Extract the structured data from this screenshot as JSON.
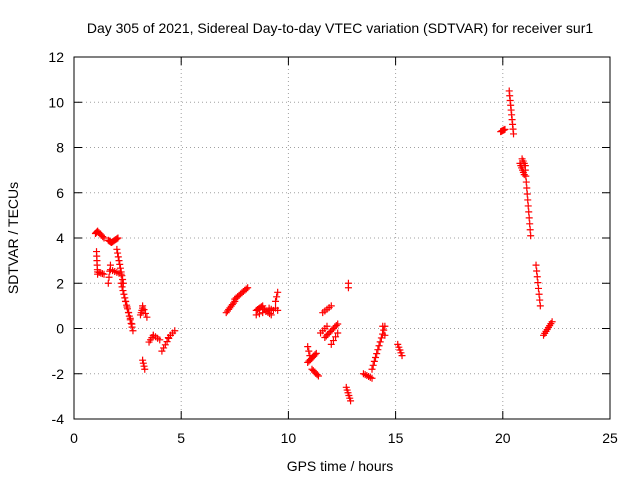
{
  "chart_data": {
    "type": "scatter",
    "title": "Day 305 of 2021, Sidereal Day-to-day VTEC variation (SDTVAR) for receiver sur1",
    "xlabel": "GPS time / hours",
    "ylabel": "SDTVAR / TECUs",
    "xlim": [
      0,
      25
    ],
    "ylim": [
      -4,
      12
    ],
    "xticks": [
      0,
      5,
      10,
      15,
      20,
      25
    ],
    "yticks": [
      -4,
      -2,
      0,
      2,
      4,
      6,
      8,
      10,
      12
    ],
    "xtick_labels": [
      "0",
      "5",
      "10",
      "15",
      "20",
      "25"
    ],
    "ytick_labels": [
      "-4",
      "-2",
      "0",
      "2",
      "4",
      "6",
      "8",
      "10",
      "12"
    ],
    "grid": true,
    "marker": "+",
    "marker_color": "#ff0000",
    "segments": [
      {
        "x0": 1.0,
        "x1": 1.1,
        "y0": 4.2,
        "y1": 4.3,
        "n": 4
      },
      {
        "x0": 1.1,
        "x1": 1.4,
        "y0": 4.3,
        "y1": 4.0,
        "n": 6
      },
      {
        "x0": 1.05,
        "x1": 1.1,
        "y0": 3.4,
        "y1": 2.4,
        "n": 6
      },
      {
        "x0": 1.1,
        "x1": 1.4,
        "y0": 2.5,
        "y1": 2.4,
        "n": 5
      },
      {
        "x0": 1.6,
        "x1": 1.75,
        "y0": 3.9,
        "y1": 3.8,
        "n": 5
      },
      {
        "x0": 1.75,
        "x1": 2.05,
        "y0": 3.8,
        "y1": 4.0,
        "n": 7
      },
      {
        "x0": 1.6,
        "x1": 1.7,
        "y0": 2.0,
        "y1": 2.8,
        "n": 4
      },
      {
        "x0": 1.7,
        "x1": 2.2,
        "y0": 2.6,
        "y1": 2.4,
        "n": 6
      },
      {
        "x0": 2.0,
        "x1": 2.3,
        "y0": 3.5,
        "y1": 2.0,
        "n": 10
      },
      {
        "x0": 2.2,
        "x1": 2.75,
        "y0": 2.0,
        "y1": -0.1,
        "n": 14
      },
      {
        "x0": 2.4,
        "x1": 2.7,
        "y0": 1.2,
        "y1": 0.2,
        "n": 5
      },
      {
        "x0": 3.1,
        "x1": 3.2,
        "y0": 0.6,
        "y1": 0.9,
        "n": 4
      },
      {
        "x0": 3.2,
        "x1": 3.4,
        "y0": 1.0,
        "y1": 0.5,
        "n": 4
      },
      {
        "x0": 3.2,
        "x1": 3.3,
        "y0": -1.4,
        "y1": -1.8,
        "n": 4
      },
      {
        "x0": 3.5,
        "x1": 3.7,
        "y0": -0.6,
        "y1": -0.3,
        "n": 4
      },
      {
        "x0": 3.7,
        "x1": 4.0,
        "y0": -0.3,
        "y1": -0.5,
        "n": 4
      },
      {
        "x0": 4.1,
        "x1": 4.5,
        "y0": -1.0,
        "y1": -0.3,
        "n": 6
      },
      {
        "x0": 4.4,
        "x1": 4.7,
        "y0": -0.4,
        "y1": -0.1,
        "n": 4
      },
      {
        "x0": 7.1,
        "x1": 7.5,
        "y0": 0.7,
        "y1": 1.2,
        "n": 8
      },
      {
        "x0": 7.5,
        "x1": 8.1,
        "y0": 1.3,
        "y1": 1.8,
        "n": 10
      },
      {
        "x0": 8.5,
        "x1": 8.8,
        "y0": 0.8,
        "y1": 1.0,
        "n": 6
      },
      {
        "x0": 8.8,
        "x1": 9.2,
        "y0": 0.9,
        "y1": 0.6,
        "n": 6
      },
      {
        "x0": 8.5,
        "x1": 9.1,
        "y0": 0.6,
        "y1": 0.8,
        "n": 5
      },
      {
        "x0": 9.1,
        "x1": 9.3,
        "y0": 0.9,
        "y1": 0.8,
        "n": 3
      },
      {
        "x0": 9.4,
        "x1": 9.5,
        "y0": 1.2,
        "y1": 1.6,
        "n": 3
      },
      {
        "x0": 9.4,
        "x1": 9.5,
        "y0": 0.9,
        "y1": 0.8,
        "n": 2
      },
      {
        "x0": 10.9,
        "x1": 11.3,
        "y0": -1.5,
        "y1": -1.1,
        "n": 8
      },
      {
        "x0": 10.9,
        "x1": 11.0,
        "y0": -0.8,
        "y1": -1.2,
        "n": 3
      },
      {
        "x0": 11.1,
        "x1": 11.4,
        "y0": -1.8,
        "y1": -2.1,
        "n": 6
      },
      {
        "x0": 11.5,
        "x1": 11.8,
        "y0": -0.2,
        "y1": 0.1,
        "n": 4
      },
      {
        "x0": 11.6,
        "x1": 12.0,
        "y0": 0.7,
        "y1": 1.0,
        "n": 5
      },
      {
        "x0": 11.7,
        "x1": 12.3,
        "y0": -0.4,
        "y1": 0.2,
        "n": 10
      },
      {
        "x0": 12.0,
        "x1": 12.3,
        "y0": -0.7,
        "y1": -0.2,
        "n": 4
      },
      {
        "x0": 12.8,
        "x1": 12.8,
        "y0": 2.0,
        "y1": 1.8,
        "n": 2
      },
      {
        "x0": 12.7,
        "x1": 12.9,
        "y0": -2.6,
        "y1": -3.2,
        "n": 6
      },
      {
        "x0": 13.5,
        "x1": 13.9,
        "y0": -2.0,
        "y1": -2.2,
        "n": 6
      },
      {
        "x0": 13.9,
        "x1": 14.5,
        "y0": -1.8,
        "y1": 0.1,
        "n": 12
      },
      {
        "x0": 14.4,
        "x1": 14.5,
        "y0": 0.1,
        "y1": -0.3,
        "n": 2
      },
      {
        "x0": 15.1,
        "x1": 15.3,
        "y0": -0.7,
        "y1": -1.2,
        "n": 5
      },
      {
        "x0": 19.9,
        "x1": 20.1,
        "y0": 8.7,
        "y1": 8.8,
        "n": 6
      },
      {
        "x0": 20.3,
        "x1": 20.5,
        "y0": 10.5,
        "y1": 8.6,
        "n": 10
      },
      {
        "x0": 20.8,
        "x1": 21.0,
        "y0": 7.3,
        "y1": 6.8,
        "n": 6
      },
      {
        "x0": 20.9,
        "x1": 21.05,
        "y0": 7.5,
        "y1": 7.2,
        "n": 4
      },
      {
        "x0": 21.05,
        "x1": 21.3,
        "y0": 7.0,
        "y1": 4.1,
        "n": 12
      },
      {
        "x0": 21.55,
        "x1": 21.75,
        "y0": 2.8,
        "y1": 1.0,
        "n": 8
      },
      {
        "x0": 21.9,
        "x1": 22.3,
        "y0": -0.3,
        "y1": 0.3,
        "n": 8
      }
    ]
  }
}
